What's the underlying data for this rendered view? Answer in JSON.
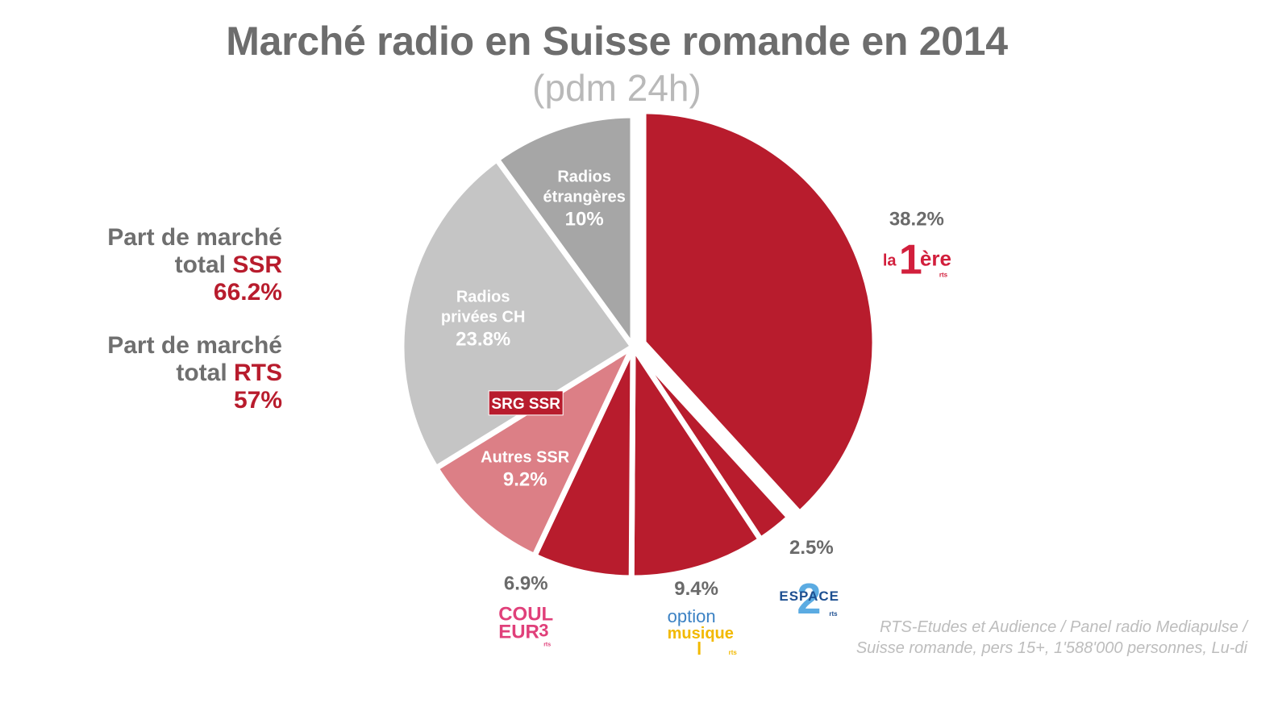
{
  "title": "Marché radio en Suisse romande en 2014",
  "subtitle": "(pdm 24h)",
  "market_share": {
    "ssr": {
      "line1": "Part de marché",
      "line2_prefix": "total ",
      "line2_accent": "SSR",
      "value": "66.2%"
    },
    "rts": {
      "line1": "Part de marché",
      "line2_prefix": "total ",
      "line2_accent": "RTS",
      "value": "57%"
    }
  },
  "source": {
    "line1": "RTS-Etudes et Audience / Panel radio Mediapulse /",
    "line2": "Suisse romande, pers 15+, 1'588'000 personnes, Lu-di"
  },
  "colors": {
    "rts_red": "#b81c2d",
    "autres_ssr": "#dc7f86",
    "privees": "#c5c5c5",
    "etrangeres": "#a6a6a6",
    "label_grey": "#6a6a6a"
  },
  "logos": {
    "la_1ere": {
      "part_a": "la",
      "part_b": "1",
      "part_c": "ère",
      "tag": "rts"
    },
    "espace_2": {
      "word": "ESPACE",
      "digit": "2",
      "tag": "rts"
    },
    "option_musique": {
      "line1": "option",
      "line2": "musique",
      "tag": "rts"
    },
    "couleur_3": {
      "line1": "COUL",
      "line2": "EUR",
      "digit": "3",
      "tag": "rts"
    },
    "srg_ssr": {
      "text": "SRG SSR"
    }
  },
  "chart_data": {
    "type": "pie",
    "title": "Marché radio en Suisse romande en 2014",
    "subtitle": "(pdm 24h)",
    "unit": "%",
    "start_angle_deg": 0,
    "direction": "clockwise",
    "slices": [
      {
        "key": "la_1ere",
        "name": "",
        "value": 38.2,
        "label": "38.2%",
        "color": "#b81c2d",
        "exploded": true,
        "label_position": "outside"
      },
      {
        "key": "espace_2",
        "name": "",
        "value": 2.5,
        "label": "2.5%",
        "color": "#b81c2d",
        "exploded": false,
        "label_position": "outside"
      },
      {
        "key": "option_musique",
        "name": "",
        "value": 9.4,
        "label": "9.4%",
        "color": "#b81c2d",
        "exploded": false,
        "label_position": "outside"
      },
      {
        "key": "couleur_3",
        "name": "",
        "value": 6.9,
        "label": "6.9%",
        "color": "#b81c2d",
        "exploded": false,
        "label_position": "outside"
      },
      {
        "key": "autres_ssr",
        "name": "Autres SSR",
        "value": 9.2,
        "label": "9.2%",
        "color": "#dc7f86",
        "exploded": false,
        "label_position": "inside"
      },
      {
        "key": "privees",
        "name": "Radios privées CH",
        "name_lines": [
          "Radios",
          "privées CH"
        ],
        "value": 23.8,
        "label": "23.8%",
        "color": "#c5c5c5",
        "exploded": false,
        "label_position": "inside"
      },
      {
        "key": "etrangeres",
        "name": "Radios étrangères",
        "name_lines": [
          "Radios",
          "étrangères"
        ],
        "value": 10,
        "label": "10%",
        "color": "#a6a6a6",
        "exploded": false,
        "label_position": "inside"
      }
    ]
  }
}
